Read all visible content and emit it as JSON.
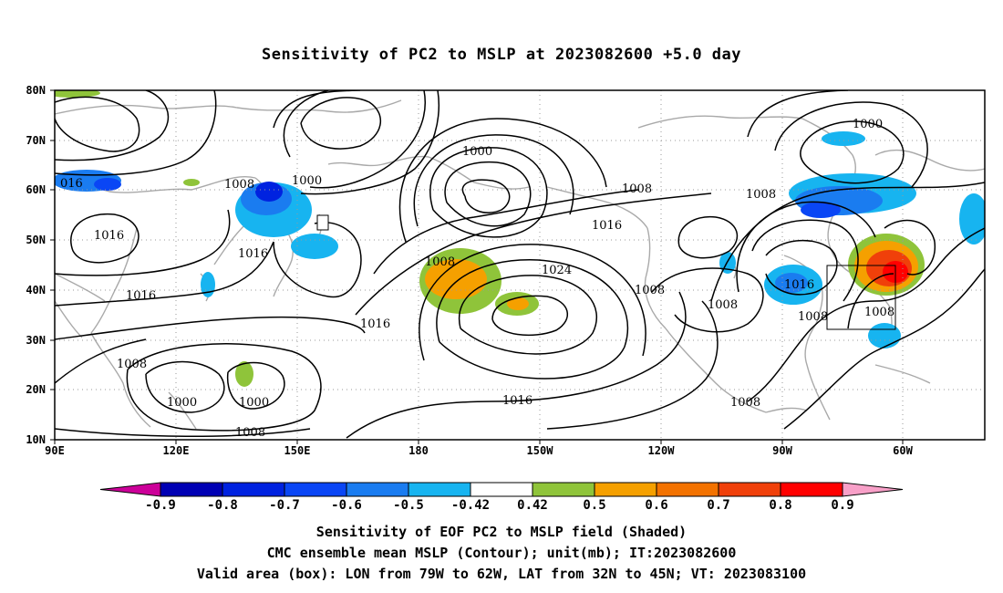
{
  "title": "Sensitivity of PC2 to MSLP at 2023082600 +5.0 day",
  "map": {
    "lat_labels": [
      "80N",
      "70N",
      "60N",
      "50N",
      "40N",
      "30N",
      "20N",
      "10N"
    ],
    "lon_labels": [
      "90E",
      "120E",
      "150E",
      "180",
      "150W",
      "120W",
      "90W",
      "60W"
    ],
    "grid": "dotted",
    "validation_box": {
      "lon_from": "79W",
      "lon_to": "62W",
      "lat_from": "32N",
      "lat_to": "45N"
    }
  },
  "contour_labels": [
    "1000",
    "1008",
    "1016",
    "1024",
    "016"
  ],
  "colorbar": {
    "labels": [
      "-0.9",
      "-0.8",
      "-0.7",
      "-0.6",
      "-0.5",
      "-0.42",
      "0.42",
      "0.5",
      "0.6",
      "0.7",
      "0.8",
      "0.9"
    ],
    "colors": [
      "#cc0099",
      "#0000b4",
      "#0022e0",
      "#0a46f5",
      "#1a7cf0",
      "#17b4f0",
      "#ffffff",
      "#8fc43a",
      "#f5a000",
      "#f37200",
      "#f0400a",
      "#ff0000",
      "#f8a0c8"
    ]
  },
  "captions": {
    "line1": "Sensitivity of EOF PC2 to MSLP field (Shaded)",
    "line2": "CMC ensemble mean MSLP (Contour); unit(mb); IT:2023082600",
    "line3": "Valid area (box): LON from 79W to 62W, LAT from 32N to 45N; VT: 2023083100"
  }
}
